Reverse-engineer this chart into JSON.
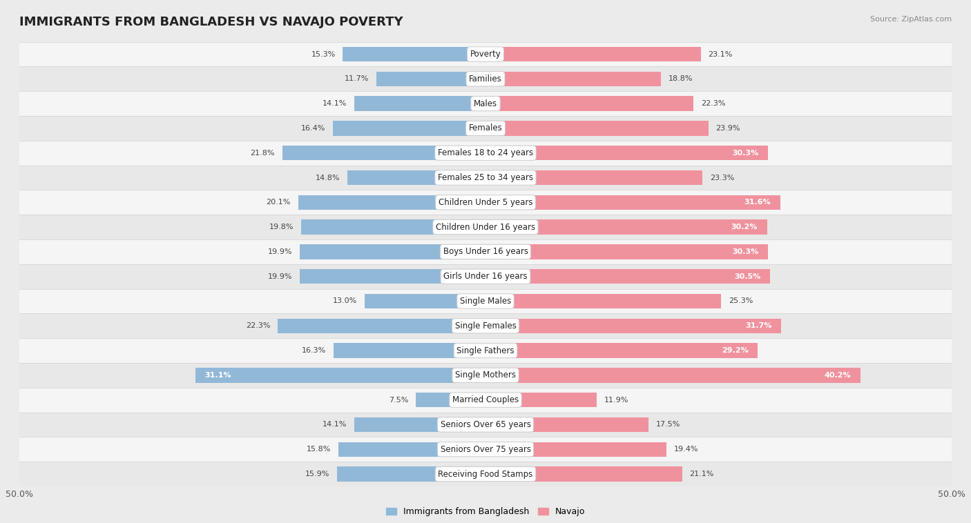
{
  "title": "IMMIGRANTS FROM BANGLADESH VS NAVAJO POVERTY",
  "source": "Source: ZipAtlas.com",
  "categories": [
    "Poverty",
    "Families",
    "Males",
    "Females",
    "Females 18 to 24 years",
    "Females 25 to 34 years",
    "Children Under 5 years",
    "Children Under 16 years",
    "Boys Under 16 years",
    "Girls Under 16 years",
    "Single Males",
    "Single Females",
    "Single Fathers",
    "Single Mothers",
    "Married Couples",
    "Seniors Over 65 years",
    "Seniors Over 75 years",
    "Receiving Food Stamps"
  ],
  "bangladesh_values": [
    15.3,
    11.7,
    14.1,
    16.4,
    21.8,
    14.8,
    20.1,
    19.8,
    19.9,
    19.9,
    13.0,
    22.3,
    16.3,
    31.1,
    7.5,
    14.1,
    15.8,
    15.9
  ],
  "navajo_values": [
    23.1,
    18.8,
    22.3,
    23.9,
    30.3,
    23.3,
    31.6,
    30.2,
    30.3,
    30.5,
    25.3,
    31.7,
    29.2,
    40.2,
    11.9,
    17.5,
    19.4,
    21.1
  ],
  "bangladesh_color": "#92b8d8",
  "navajo_color": "#f0929e",
  "bangladesh_highlight_color": "#6a9fc0",
  "navajo_highlight_color": "#e8707e",
  "bangladesh_label": "Immigrants from Bangladesh",
  "navajo_label": "Navajo",
  "axis_limit": 50.0,
  "bg_color": "#ebebeb",
  "row_bg_even": "#e8e8e8",
  "row_bg_odd": "#f5f5f5",
  "bar_height": 0.6,
  "title_fontsize": 13,
  "label_fontsize": 8.5,
  "value_fontsize": 8,
  "inside_label_threshold": 28
}
